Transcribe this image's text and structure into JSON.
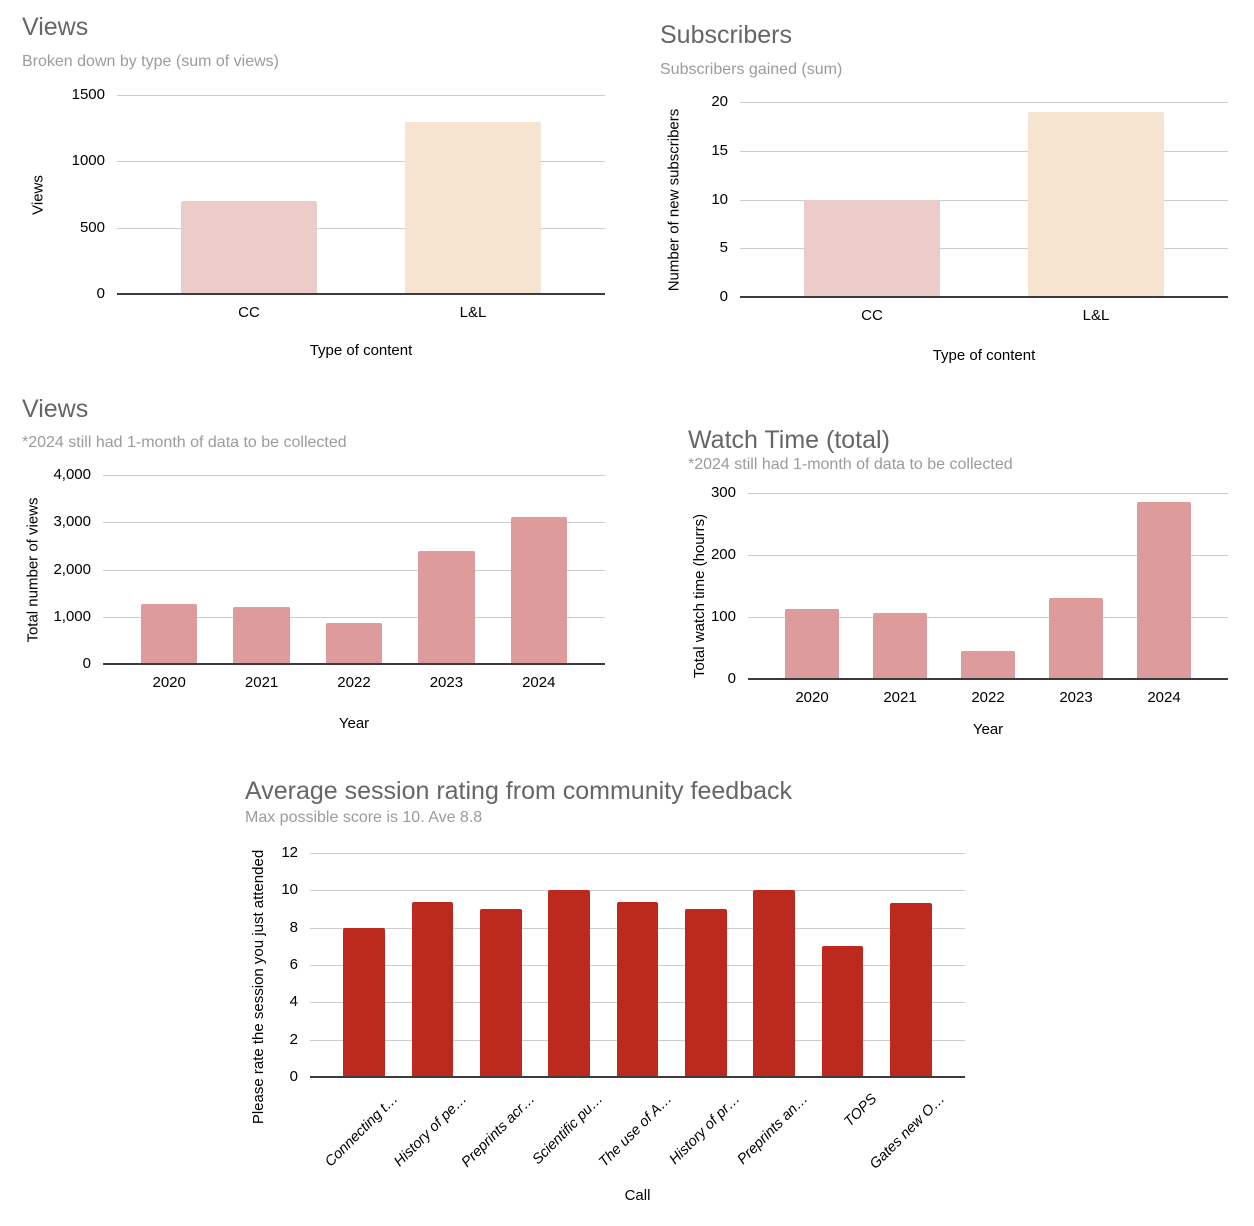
{
  "palette": {
    "bar_pink_light": "#ecccca",
    "bar_cream": "#f7e4d0",
    "bar_rose": "#dd9b9b",
    "bar_red": "#bc2a1e",
    "gridline": "#cccccc",
    "axis_line": "#3c3c3c",
    "title_gray": "#666666",
    "subtitle_gray": "#9b9b9b"
  },
  "chart_data": [
    {
      "type": "bar",
      "title": "Views",
      "subtitle": "Broken down by type (sum of views)",
      "xlabel": "Type of content",
      "ylabel": "Views",
      "categories": [
        "CC",
        "L&L"
      ],
      "values": [
        700,
        1300
      ],
      "bar_colors": [
        "#ecccca",
        "#f7e4d0"
      ],
      "ylim": [
        0,
        1500
      ],
      "yticks": [
        {
          "v": 0,
          "label": "0"
        },
        {
          "v": 500,
          "label": "500"
        },
        {
          "v": 1000,
          "label": "1000"
        },
        {
          "v": 1500,
          "label": "1500"
        }
      ],
      "grid": true,
      "legend": "none"
    },
    {
      "type": "bar",
      "title": "Subscribers",
      "subtitle": "Subscribers gained (sum)",
      "xlabel": "Type of content",
      "ylabel": "Number of new subscribers",
      "categories": [
        "CC",
        "L&L"
      ],
      "values": [
        10,
        19
      ],
      "bar_colors": [
        "#ecccca",
        "#f7e4d0"
      ],
      "ylim": [
        0,
        20
      ],
      "yticks": [
        {
          "v": 0,
          "label": "0"
        },
        {
          "v": 5,
          "label": "5"
        },
        {
          "v": 10,
          "label": "10"
        },
        {
          "v": 15,
          "label": "15"
        },
        {
          "v": 20,
          "label": "20"
        }
      ],
      "grid": true,
      "legend": "none"
    },
    {
      "type": "bar",
      "title": "Views",
      "subtitle": "*2024 still had 1-month of data to be collected",
      "xlabel": "Year",
      "ylabel": "Total number of views",
      "categories": [
        "2020",
        "2021",
        "2022",
        "2023",
        "2024"
      ],
      "values": [
        1270,
        1210,
        860,
        2390,
        3110
      ],
      "bar_color": "#dd9b9b",
      "ylim": [
        0,
        4000
      ],
      "yticks": [
        {
          "v": 0,
          "label": "0"
        },
        {
          "v": 1000,
          "label": "1,000"
        },
        {
          "v": 2000,
          "label": "2,000"
        },
        {
          "v": 3000,
          "label": "3,000"
        },
        {
          "v": 4000,
          "label": "4,000"
        }
      ],
      "grid": true,
      "legend": "none"
    },
    {
      "type": "bar",
      "title": "Watch Time (total)",
      "subtitle": "*2024 still had 1-month of data to be collected",
      "xlabel": "Year",
      "ylabel": "Total watch time (hourrs)",
      "categories": [
        "2020",
        "2021",
        "2022",
        "2023",
        "2024"
      ],
      "values": [
        113,
        107,
        45,
        130,
        285
      ],
      "bar_color": "#dd9b9b",
      "ylim": [
        0,
        300
      ],
      "yticks": [
        {
          "v": 0,
          "label": "0"
        },
        {
          "v": 100,
          "label": "100"
        },
        {
          "v": 200,
          "label": "200"
        },
        {
          "v": 300,
          "label": "300"
        }
      ],
      "grid": true,
      "legend": "none"
    },
    {
      "type": "bar",
      "title": "Average session rating from community feedback",
      "subtitle": "Max possible score is 10. Ave 8.8",
      "xlabel": "Call",
      "ylabel": "Please rate the session you just attended",
      "categories": [
        "Connecting t…",
        "History of pe…",
        "Preprints acr…",
        "Scientific pu…",
        "The use of A…",
        "History of pr…",
        "Preprints an…",
        "TOPS",
        "Gates new O…"
      ],
      "values": [
        8,
        9.4,
        9,
        10,
        9.4,
        9,
        10,
        7,
        9.3
      ],
      "bar_color": "#bc2a1e",
      "ylim": [
        0,
        12
      ],
      "yticks": [
        {
          "v": 0,
          "label": "0"
        },
        {
          "v": 2,
          "label": "2"
        },
        {
          "v": 4,
          "label": "4"
        },
        {
          "v": 6,
          "label": "6"
        },
        {
          "v": 8,
          "label": "8"
        },
        {
          "v": 10,
          "label": "10"
        },
        {
          "v": 12,
          "label": "12"
        }
      ],
      "grid": true,
      "legend": "none",
      "x_labels_rotated": true
    }
  ]
}
